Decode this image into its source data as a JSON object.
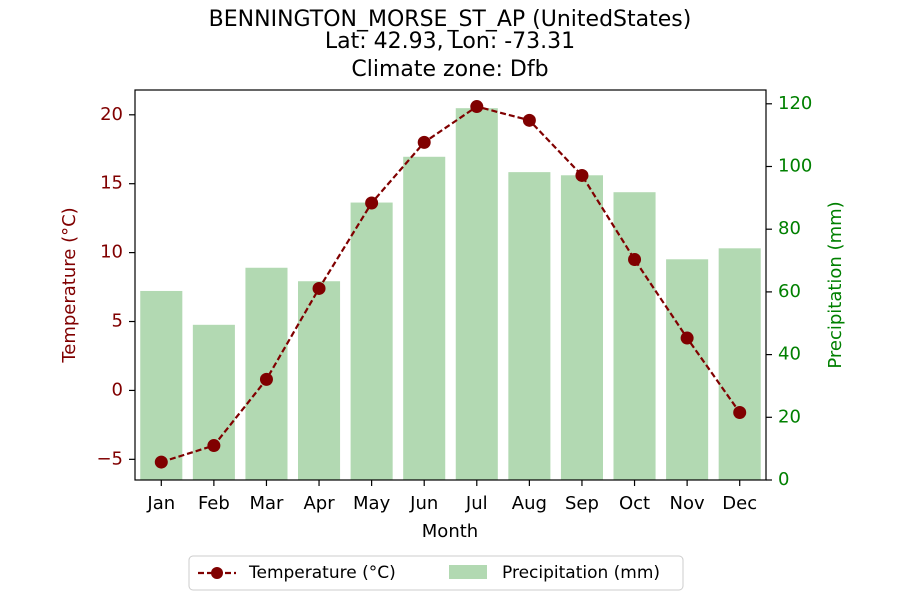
{
  "chart_data": {
    "type": "bar",
    "title_lines": [
      "BENNINGTON_MORSE_ST_AP (UnitedStates)",
      "Lat: 42.93, Lon: -73.31",
      "Climate zone: Dfb"
    ],
    "categories": [
      "Jan",
      "Feb",
      "Mar",
      "Apr",
      "May",
      "Jun",
      "Jul",
      "Aug",
      "Sep",
      "Oct",
      "Nov",
      "Dec"
    ],
    "xlabel": "Month",
    "series": [
      {
        "name": "Temperature (°C)",
        "type": "line",
        "axis": "left",
        "color": "#800000",
        "values": [
          -5.2,
          -4.0,
          0.8,
          7.4,
          13.6,
          18.0,
          20.6,
          19.6,
          15.6,
          9.5,
          3.8,
          -1.6
        ]
      },
      {
        "name": "Precipitation (mm)",
        "type": "bar",
        "axis": "right",
        "color": "#b2d9b2",
        "values": [
          60.3,
          49.5,
          67.7,
          63.4,
          88.5,
          103.1,
          118.6,
          98.2,
          97.2,
          91.8,
          70.4,
          73.9
        ]
      }
    ],
    "y_left": {
      "label": "Temperature (°C)",
      "color": "#800000",
      "lim": [
        -6.5,
        21.8
      ],
      "ticks": [
        -5,
        0,
        5,
        10,
        15,
        20
      ],
      "tick_labels": [
        "−5",
        "0",
        "5",
        "10",
        "15",
        "20"
      ]
    },
    "y_right": {
      "label": "Precipitation (mm)",
      "color": "#008000",
      "lim": [
        0,
        124.4
      ],
      "ticks": [
        0,
        20,
        40,
        60,
        80,
        100,
        120
      ],
      "tick_labels": [
        "0",
        "20",
        "40",
        "60",
        "80",
        "100",
        "120"
      ]
    },
    "legend": {
      "placement": "bottom-center",
      "entries": [
        "Temperature (°C)",
        "Precipitation (mm)"
      ]
    },
    "grid": false
  }
}
